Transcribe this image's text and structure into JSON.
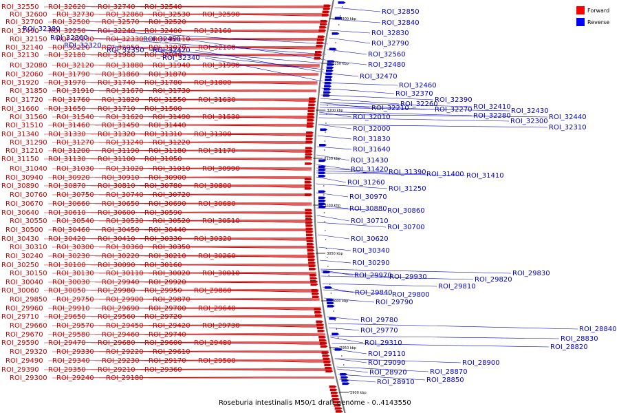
{
  "caption": "Roseburia intestinalis M50/1 draft genome - 0..4143550",
  "legend": [
    {
      "label": "Forward",
      "color": "#ff0000"
    },
    {
      "label": "Reverse",
      "color": "#0000ff"
    }
  ],
  "colors": {
    "forward": "#cc0000",
    "reverse": "#0000cc",
    "backbone": "#777777"
  },
  "ticks": [
    "3300 kbp",
    "3250 kbp",
    "3200 kbp",
    "3150 kbp",
    "3100 kbp",
    "3050 kbp",
    "3000 kbp",
    "2950 kbp",
    "2900 kbp"
  ],
  "forward_labels": [
    "ROI_32550",
    "ROI_32620",
    "ROI_32740",
    "ROI_32540",
    "ROI_32600",
    "ROI_32730",
    "ROI_32860",
    "ROI_32530",
    "ROI_32590",
    "ROI_32700",
    "ROI_32500",
    "ROI_32570",
    "ROI_32520",
    "ROI_32490",
    "ROI_32250",
    "ROI_32240",
    "ROI_32400",
    "ROI_32160",
    "ROI_32150",
    "ROI_32230",
    "ROI_32330",
    "ROI_32110",
    "ROI_32140",
    "ROI_32220",
    "ROI_32050",
    "ROI_32020",
    "ROI_32100",
    "ROI_32130",
    "ROI_32180",
    "ROI_31960",
    "ROI_32040",
    "ROI_32080",
    "ROI_32120",
    "ROI_31880",
    "ROI_31940",
    "ROI_31990",
    "ROI_32060",
    "ROI_31790",
    "ROI_31860",
    "ROI_31870",
    "ROI_31920",
    "ROI_31970",
    "ROI_31740",
    "ROI_31780",
    "ROI_31800",
    "ROI_31850",
    "ROI_31910",
    "ROI_31670",
    "ROI_31730",
    "ROI_31720",
    "ROI_31760",
    "ROI_31820",
    "ROI_31550",
    "ROI_31630",
    "ROI_31660",
    "ROI_31650",
    "ROI_31710",
    "ROI_31500",
    "ROI_31560",
    "ROI_31540",
    "ROI_31620",
    "ROI_31490",
    "ROI_31530",
    "ROI_31510",
    "ROI_31460",
    "ROI_31450",
    "ROI_31440",
    "ROI_31340",
    "ROI_31330",
    "ROI_31320",
    "ROI_31310",
    "ROI_31300",
    "ROI_31290",
    "ROI_31270",
    "ROI_31240",
    "ROI_31220",
    "ROI_31210",
    "ROI_31200",
    "ROI_31190",
    "ROI_31180",
    "ROI_31170",
    "ROI_31150",
    "ROI_31130",
    "ROI_31100",
    "ROI_31050",
    "ROI_31040",
    "ROI_31030",
    "ROI_31020",
    "ROI_31010",
    "ROI_30990",
    "ROI_30940",
    "ROI_30920",
    "ROI_30910",
    "ROI_30900",
    "ROI_30890",
    "ROI_30870",
    "ROI_30810",
    "ROI_30780",
    "ROI_30800",
    "ROI_30760",
    "ROI_30750",
    "ROI_30740",
    "ROI_30720",
    "ROI_30670",
    "ROI_30660",
    "ROI_30650",
    "ROI_30690",
    "ROI_30680",
    "ROI_30640",
    "ROI_30610",
    "ROI_30600",
    "ROI_30590",
    "ROI_30550",
    "ROI_30540",
    "ROI_30530",
    "ROI_30520",
    "ROI_30510",
    "ROI_30500",
    "ROI_30460",
    "ROI_30450",
    "ROI_30440",
    "ROI_30430",
    "ROI_30420",
    "ROI_30410",
    "ROI_30330",
    "ROI_30320",
    "ROI_30310",
    "ROI_30300",
    "ROI_30360",
    "ROI_30350",
    "ROI_30240",
    "ROI_30230",
    "ROI_30220",
    "ROI_30210",
    "ROI_30260",
    "ROI_30250",
    "ROI_30100",
    "ROI_30090",
    "ROI_30160",
    "ROI_30150",
    "ROI_30130",
    "ROI_30110",
    "ROI_30020",
    "ROI_30010",
    "ROI_30040",
    "ROI_30030",
    "ROI_29940",
    "ROI_29920",
    "ROI_30060",
    "ROI_30050",
    "ROI_29980",
    "ROI_29950",
    "ROI_29860",
    "ROI_29850",
    "ROI_29750",
    "ROI_29900",
    "ROI_29870",
    "ROI_29960",
    "ROI_29910",
    "ROI_29690",
    "ROI_29700",
    "ROI_29640",
    "ROI_29710",
    "ROI_29650",
    "ROI_29560",
    "ROI_29720",
    "ROI_29660",
    "ROI_29570",
    "ROI_29450",
    "ROI_29420",
    "ROI_29730",
    "ROI_29670",
    "ROI_29580",
    "ROI_29460",
    "ROI_29740",
    "ROI_29590",
    "ROI_29470",
    "ROI_29680",
    "ROI_29600",
    "ROI_29480",
    "ROI_29320",
    "ROI_29330",
    "ROI_29220",
    "ROI_29610",
    "ROI_29490",
    "ROI_29340",
    "ROI_29230",
    "ROI_29170",
    "ROI_29500",
    "ROI_29390",
    "ROI_29350",
    "ROI_29210",
    "ROI_29360",
    "ROI_29300",
    "ROI_29240",
    "ROI_29180"
  ],
  "reverse_labels": [
    "ROI_32380",
    "ROI_32360",
    "ROI_32320",
    "ROI_32350",
    "ROI_32450",
    "ROI_32420",
    "ROI_32340",
    "ROI_32850",
    "ROI_32840",
    "ROI_32830",
    "ROI_32790",
    "ROI_32560",
    "ROI_32480",
    "ROI_32470",
    "ROI_32460",
    "ROI_32370",
    "ROI_32390",
    "ROI_32410",
    "ROI_32430",
    "ROI_32440",
    "ROI_32260",
    "ROI_32270",
    "ROI_32280",
    "ROI_32300",
    "ROI_32310",
    "ROI_32210",
    "ROI_32010",
    "ROI_32000",
    "ROI_31830",
    "ROI_31640",
    "ROI_31430",
    "ROI_31420",
    "ROI_31390",
    "ROI_31400",
    "ROI_31410",
    "ROI_31260",
    "ROI_31250",
    "ROI_30970",
    "ROI_30880",
    "ROI_30860",
    "ROI_30710",
    "ROI_30700",
    "ROI_30620",
    "ROI_30340",
    "ROI_30290",
    "ROI_29970",
    "ROI_29930",
    "ROI_29830",
    "ROI_29820",
    "ROI_29810",
    "ROI_29840",
    "ROI_29800",
    "ROI_29790",
    "ROI_29780",
    "ROI_29770",
    "ROI_29310",
    "ROI_29110",
    "ROI_29090",
    "ROI_28920",
    "ROI_28910",
    "ROI_28850",
    "ROI_28870",
    "ROI_28900",
    "ROI_28820",
    "ROI_28830",
    "ROI_28840"
  ]
}
